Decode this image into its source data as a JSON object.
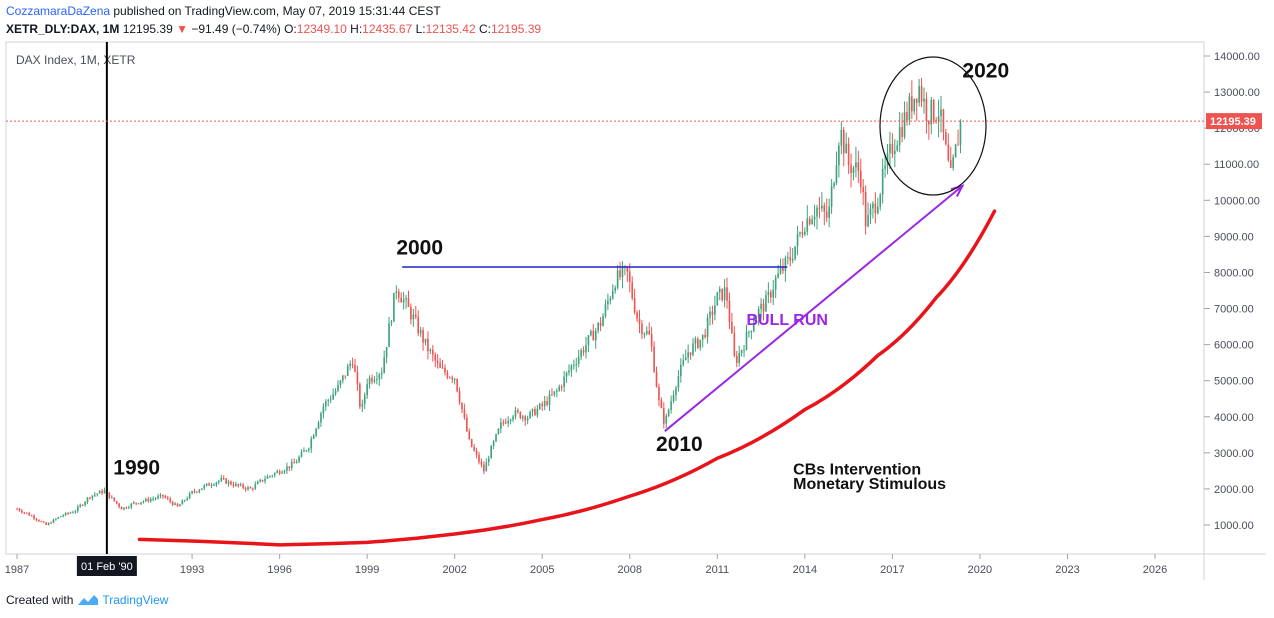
{
  "header": {
    "author": "CozzamaraDaZena",
    "published": " published on TradingView.com, May 07, 2019 15:31:44 CEST",
    "symbol": "XETR_DLY:DAX, 1M",
    "last": "12195.39",
    "change": "−91.49 (−0.74%)",
    "o_label": "O:",
    "o": "12349.10",
    "h_label": "H:",
    "h": "12435.67",
    "l_label": "L:",
    "l": "12135.42",
    "c_label": "C:",
    "c": "12195.39"
  },
  "footer": {
    "created": "Created with",
    "brand": "TradingView"
  },
  "colors": {
    "up": "#3ea27a",
    "down": "#ef5350",
    "price_line": "#ef5350",
    "annot_line": "#1e22cc",
    "bull": "#9b26e6",
    "curve": "#e8141a"
  },
  "chart_data": {
    "type": "candlestick",
    "title": "DAX Index, 1M, XETR",
    "current_price_label": "12195.39",
    "current_price": 12195.39,
    "ylim": [
      0,
      14400
    ],
    "y_ticks": [
      "1000.00",
      "2000.00",
      "3000.00",
      "4000.00",
      "5000.00",
      "6000.00",
      "7000.00",
      "8000.00",
      "9000.00",
      "10000.00",
      "11000.00",
      "12000.00",
      "13000.00",
      "14000.00"
    ],
    "x_ticks": [
      "1987",
      "1993",
      "1996",
      "1999",
      "2002",
      "2005",
      "2008",
      "2011",
      "2014",
      "2017",
      "2020",
      "2023",
      "2026"
    ],
    "cursor_label": "01 Feb '90",
    "cursor_date": 1990.08,
    "series": [
      {
        "x": [
          1987.0,
          1987.5,
          1988.0,
          1988.5,
          1989.0,
          1989.5,
          1990.0,
          1990.1,
          1990.6,
          1991.0,
          1991.5,
          1992.0,
          1992.5,
          1993.0,
          1993.5,
          1994.0,
          1994.5,
          1995.0,
          1995.5,
          1996.0,
          1996.5,
          1997.0,
          1997.5,
          1998.0,
          1998.5,
          1998.8,
          1999.0,
          1999.5,
          2000.0,
          2000.2,
          2000.6,
          2001.0,
          2001.5,
          2002.0,
          2002.5,
          2003.0,
          2003.2,
          2003.6,
          2004.0,
          2004.5,
          2005.0,
          2005.5,
          2006.0,
          2006.5,
          2007.0,
          2007.5,
          2007.9,
          2008.3,
          2008.7,
          2009.0,
          2009.2,
          2009.6,
          2010.0,
          2010.5,
          2011.0,
          2011.3,
          2011.6,
          2011.9,
          2012.3,
          2012.7,
          2013.0,
          2013.5,
          2014.0,
          2014.4,
          2014.8,
          2015.2,
          2015.5,
          2015.9,
          2016.1,
          2016.5,
          2017.0,
          2017.5,
          2017.9,
          2018.2,
          2018.6,
          2018.9,
          2019.0,
          2019.2,
          2019.35
        ],
        "close": [
          1450,
          1250,
          1000,
          1250,
          1400,
          1800,
          1950,
          1850,
          1450,
          1600,
          1700,
          1800,
          1500,
          1900,
          2100,
          2250,
          2100,
          2000,
          2300,
          2500,
          2700,
          3200,
          4300,
          4800,
          5600,
          4100,
          5000,
          5300,
          7600,
          7300,
          6700,
          6000,
          5300,
          5100,
          3300,
          2500,
          3000,
          3800,
          4100,
          4000,
          4300,
          4700,
          5400,
          6000,
          6600,
          7800,
          8000,
          6600,
          6200,
          4400,
          3800,
          5000,
          5800,
          6200,
          7300,
          7500,
          5500,
          6000,
          6800,
          7200,
          7800,
          8400,
          9400,
          9800,
          9500,
          12000,
          11000,
          10800,
          9300,
          10100,
          11500,
          12400,
          13200,
          12400,
          12500,
          11000,
          10600,
          11500,
          12195
        ]
      }
    ],
    "annotations": {
      "label_1990": "1990",
      "label_2000": "2000",
      "label_2010": "2010",
      "label_2020": "2020",
      "bull_run": "BULL RUN",
      "cbs_1": "CBs Intervention",
      "cbs_2": "Monetary Stimulous",
      "resistance_level": 8150,
      "resistance_from": 2000.2,
      "resistance_to": 2013.4,
      "bull_from": [
        2009.2,
        3600
      ],
      "bull_to": [
        2019.4,
        10400
      ],
      "curve_points": [
        [
          1991.2,
          600
        ],
        [
          1996,
          450
        ],
        [
          1999,
          520
        ],
        [
          2002,
          750
        ],
        [
          2005,
          1150
        ],
        [
          2008,
          1800
        ],
        [
          2011,
          2850
        ],
        [
          2014,
          4200
        ],
        [
          2016.5,
          5700
        ],
        [
          2018.5,
          7300
        ],
        [
          2020.5,
          9700
        ]
      ]
    }
  }
}
